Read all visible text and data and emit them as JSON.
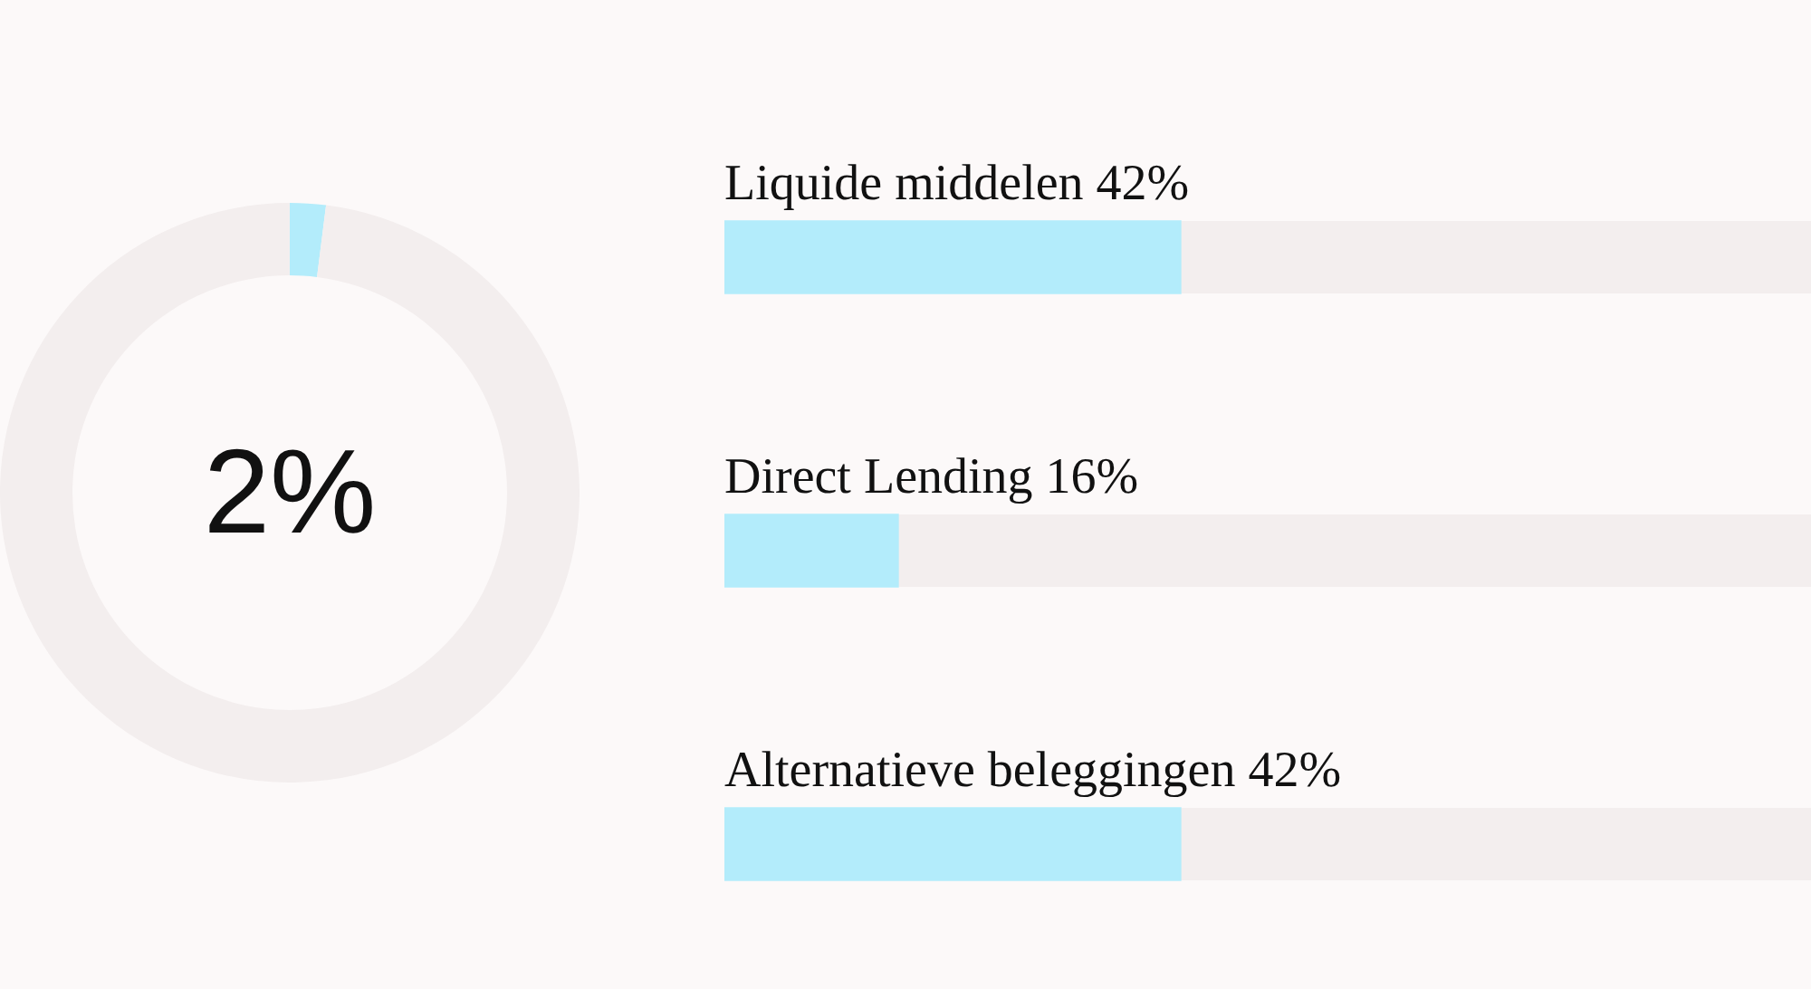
{
  "chart_data": [
    {
      "type": "donut",
      "categories": [
        null,
        null
      ],
      "values": [
        2,
        98
      ],
      "colors": [
        "#b3ecfb",
        "#f3eeee"
      ],
      "value_labels": [
        "2%",
        null
      ]
    },
    {
      "type": "bar",
      "orientation": "horizontal",
      "categories": [
        "Liquide middelen",
        "Direct Lending",
        "Alternatieve beleggingen"
      ],
      "color": "#b3ecfb",
      "values": [
        42,
        16,
        42
      ],
      "value_labels": [
        "42%",
        "16%",
        "42%"
      ],
      "xlim": [
        0,
        100
      ],
      "tick_labels": false
    }
  ]
}
